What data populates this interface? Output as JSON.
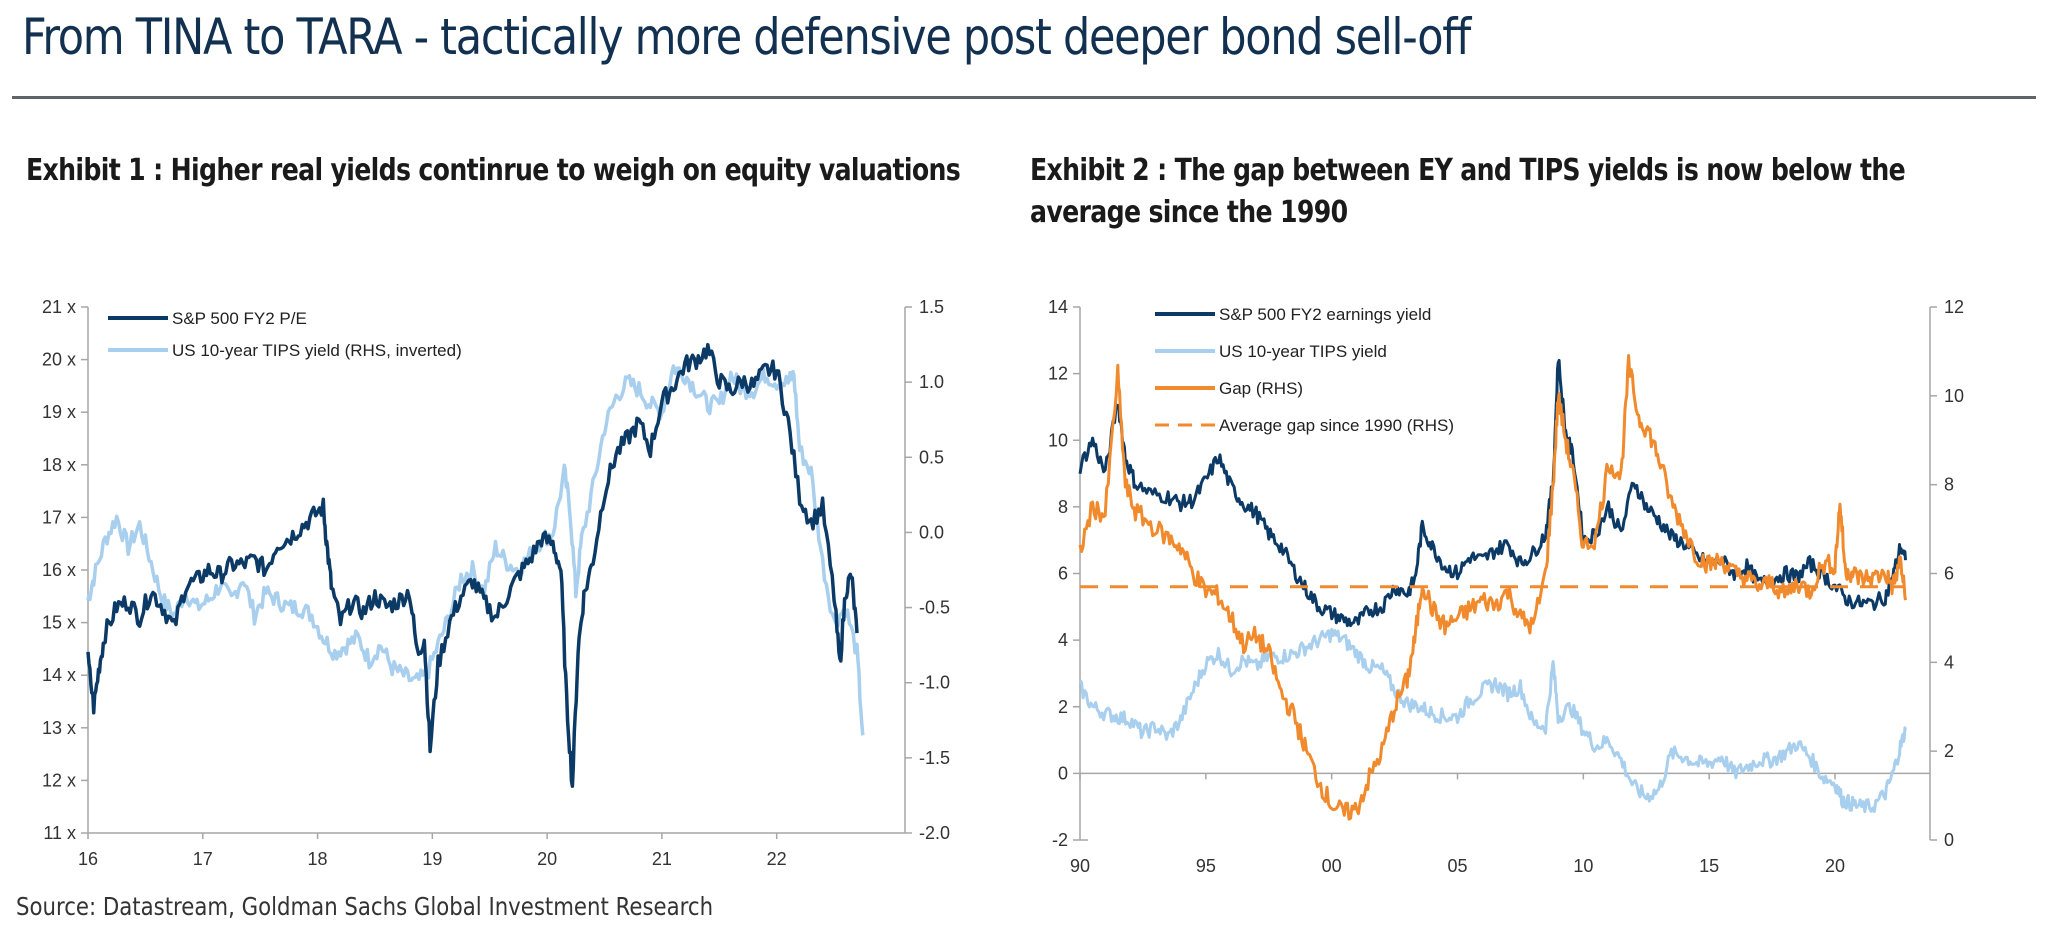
{
  "header": {
    "title": "From TINA to TARA - tactically more defensive post deeper bond sell-off"
  },
  "exhibits": [
    {
      "title": "Exhibit 1 : Higher real yields continrue to weigh on equity valuations"
    },
    {
      "title": "Exhibit 2 : The gap between EY and TIPS yields is now below the average since the 1990"
    }
  ],
  "footer": {
    "source": "Source: Datastream, Goldman Sachs Global Investment Research"
  },
  "colors": {
    "dark_blue": "#0c3a66",
    "light_blue": "#a9cfee",
    "orange": "#f08a2c",
    "axis": "#a6a6a6"
  },
  "chart_data": [
    {
      "type": "line",
      "title": "Exhibit 1 : Higher real yields continrue to weigh on equity valuations",
      "xlabel": "",
      "ylabel": "",
      "x_ticks": [
        "16",
        "17",
        "18",
        "19",
        "20",
        "21",
        "22"
      ],
      "xlim": [
        2016.0,
        2022.9
      ],
      "y_left": {
        "ticks": [
          "21 x",
          "20 x",
          "19 x",
          "18 x",
          "17 x",
          "16 x",
          "15 x",
          "14 x",
          "13 x",
          "12 x",
          "11 x"
        ],
        "range": [
          11,
          21
        ]
      },
      "y_right": {
        "ticks": [
          "1.5",
          "1.0",
          "0.5",
          "0.0",
          "-0.5",
          "-1.0",
          "-1.5",
          "-2.0"
        ],
        "range": [
          -2.0,
          1.5
        ],
        "inverted_series": true
      },
      "grid": false,
      "legend_position": "top-left",
      "series": [
        {
          "name": "S&P 500 FY2 P/E",
          "axis": "left",
          "color_key": "dark_blue",
          "x": [
            2016.0,
            2016.05,
            2016.1,
            2016.15,
            2016.25,
            2016.35,
            2016.45,
            2016.55,
            2016.65,
            2016.75,
            2016.85,
            2016.95,
            2017.05,
            2017.15,
            2017.25,
            2017.35,
            2017.45,
            2017.55,
            2017.65,
            2017.75,
            2017.85,
            2017.95,
            2018.05,
            2018.08,
            2018.12,
            2018.2,
            2018.3,
            2018.4,
            2018.5,
            2018.6,
            2018.7,
            2018.8,
            2018.87,
            2018.93,
            2018.98,
            2019.05,
            2019.15,
            2019.25,
            2019.35,
            2019.45,
            2019.55,
            2019.65,
            2019.75,
            2019.85,
            2019.95,
            2020.05,
            2020.12,
            2020.17,
            2020.22,
            2020.27,
            2020.32,
            2020.4,
            2020.5,
            2020.6,
            2020.7,
            2020.8,
            2020.9,
            2021.0,
            2021.1,
            2021.2,
            2021.3,
            2021.4,
            2021.5,
            2021.6,
            2021.7,
            2021.8,
            2021.9,
            2022.0,
            2022.1,
            2022.2,
            2022.3,
            2022.4,
            2022.5,
            2022.55,
            2022.6,
            2022.65,
            2022.7
          ],
          "values": [
            14.3,
            13.4,
            14.2,
            14.8,
            15.3,
            15.4,
            15.1,
            15.6,
            15.3,
            14.9,
            15.7,
            15.8,
            16.0,
            15.9,
            16.1,
            16.1,
            16.2,
            16.0,
            16.5,
            16.6,
            16.8,
            17.0,
            17.2,
            16.5,
            15.7,
            15.0,
            15.4,
            15.2,
            15.5,
            15.3,
            15.4,
            15.6,
            14.4,
            14.7,
            12.6,
            14.2,
            15.0,
            15.5,
            15.8,
            15.4,
            15.1,
            15.5,
            15.9,
            16.2,
            16.6,
            16.5,
            16.0,
            13.5,
            11.9,
            14.5,
            15.5,
            16.2,
            17.5,
            18.2,
            18.5,
            18.8,
            18.3,
            19.2,
            19.5,
            19.9,
            20.0,
            20.2,
            19.6,
            19.4,
            19.6,
            19.5,
            19.8,
            19.8,
            18.8,
            17.4,
            16.9,
            17.2,
            15.5,
            14.2,
            15.6,
            15.9,
            14.8
          ]
        },
        {
          "name": "US 10-year TIPS yield (RHS, inverted)",
          "axis": "right",
          "inverted": true,
          "color_key": "light_blue",
          "x": [
            2016.0,
            2016.05,
            2016.15,
            2016.25,
            2016.35,
            2016.45,
            2016.55,
            2016.65,
            2016.75,
            2016.85,
            2016.95,
            2017.05,
            2017.15,
            2017.25,
            2017.35,
            2017.45,
            2017.55,
            2017.65,
            2017.75,
            2017.85,
            2017.95,
            2018.05,
            2018.15,
            2018.25,
            2018.35,
            2018.45,
            2018.55,
            2018.65,
            2018.75,
            2018.85,
            2018.95,
            2019.05,
            2019.15,
            2019.25,
            2019.35,
            2019.45,
            2019.55,
            2019.65,
            2019.75,
            2019.85,
            2019.95,
            2020.05,
            2020.15,
            2020.2,
            2020.25,
            2020.3,
            2020.4,
            2020.5,
            2020.6,
            2020.7,
            2020.8,
            2020.9,
            2021.0,
            2021.1,
            2021.2,
            2021.3,
            2021.4,
            2021.5,
            2021.6,
            2021.7,
            2021.8,
            2021.9,
            2022.0,
            2022.1,
            2022.15,
            2022.2,
            2022.3,
            2022.4,
            2022.5,
            2022.6,
            2022.7,
            2022.75
          ],
          "values": [
            -0.45,
            -0.3,
            -0.05,
            0.1,
            -0.1,
            0.05,
            -0.2,
            -0.45,
            -0.55,
            -0.4,
            -0.5,
            -0.45,
            -0.35,
            -0.45,
            -0.3,
            -0.55,
            -0.4,
            -0.45,
            -0.5,
            -0.5,
            -0.55,
            -0.7,
            -0.8,
            -0.75,
            -0.7,
            -0.85,
            -0.75,
            -0.9,
            -0.95,
            -1.0,
            -0.95,
            -0.75,
            -0.55,
            -0.3,
            -0.25,
            -0.4,
            -0.1,
            -0.2,
            -0.25,
            -0.15,
            -0.05,
            0.0,
            0.4,
            0.15,
            -0.4,
            -0.05,
            0.3,
            0.7,
            0.9,
            1.0,
            0.95,
            0.85,
            0.8,
            1.1,
            1.05,
            0.95,
            0.85,
            0.85,
            1.05,
            0.95,
            0.95,
            1.05,
            1.0,
            1.0,
            1.05,
            0.55,
            0.4,
            -0.2,
            -0.6,
            -0.5,
            -0.8,
            -1.35
          ]
        }
      ]
    },
    {
      "type": "line",
      "title": "Exhibit 2 : The gap between EY and TIPS yields is now below the average since the 1990",
      "xlabel": "",
      "ylabel": "",
      "x_ticks": [
        "90",
        "95",
        "00",
        "05",
        "10",
        "15",
        "20"
      ],
      "xlim": [
        1990.0,
        2022.9
      ],
      "y_left": {
        "ticks": [
          "14",
          "12",
          "10",
          "8",
          "6",
          "4",
          "2",
          "0",
          "-2"
        ],
        "range": [
          -2,
          14
        ]
      },
      "y_right": {
        "ticks": [
          "12",
          "10",
          "8",
          "6",
          "4",
          "2",
          "0"
        ],
        "range": [
          0,
          12
        ]
      },
      "grid": false,
      "zero_line": true,
      "legend_position": "top-left",
      "series": [
        {
          "name": "S&P 500 FY2 earnings yield",
          "axis": "left",
          "color_key": "dark_blue",
          "x": [
            1990.0,
            1990.5,
            1991.0,
            1991.5,
            1991.8,
            1992.2,
            1992.8,
            1993.5,
            1994.0,
            1994.5,
            1995.0,
            1995.5,
            1996.0,
            1996.5,
            1997.0,
            1997.5,
            1998.0,
            1998.5,
            1999.0,
            1999.5,
            2000.0,
            2000.5,
            2001.0,
            2001.5,
            2002.0,
            2002.5,
            2003.0,
            2003.3,
            2003.6,
            2004.0,
            2004.5,
            2005.0,
            2005.5,
            2006.0,
            2006.5,
            2007.0,
            2007.5,
            2008.0,
            2008.5,
            2008.8,
            2009.0,
            2009.3,
            2009.6,
            2010.0,
            2010.5,
            2011.0,
            2011.5,
            2012.0,
            2012.5,
            2013.0,
            2013.5,
            2014.0,
            2014.5,
            2015.0,
            2015.5,
            2016.0,
            2016.5,
            2017.0,
            2017.5,
            2018.0,
            2018.5,
            2019.0,
            2019.5,
            2020.0,
            2020.5,
            2021.0,
            2021.5,
            2022.0,
            2022.3,
            2022.6,
            2022.8
          ],
          "values": [
            9.2,
            10.0,
            9.0,
            11.2,
            9.5,
            8.7,
            8.4,
            8.3,
            8.1,
            8.2,
            8.8,
            9.5,
            8.6,
            8.1,
            7.8,
            7.2,
            6.8,
            6.1,
            5.5,
            5.0,
            4.8,
            4.6,
            4.5,
            4.9,
            5.0,
            5.6,
            5.4,
            5.8,
            7.4,
            6.8,
            6.2,
            6.0,
            6.5,
            6.4,
            6.7,
            6.9,
            6.3,
            6.6,
            7.2,
            8.8,
            12.5,
            10.2,
            9.5,
            7.0,
            7.2,
            8.0,
            7.2,
            8.8,
            8.0,
            7.6,
            7.1,
            6.9,
            6.5,
            6.3,
            6.4,
            6.0,
            6.2,
            5.7,
            5.8,
            6.0,
            5.9,
            6.3,
            6.0,
            5.6,
            5.2,
            5.1,
            5.1,
            5.3,
            5.9,
            6.8,
            6.4
          ]
        },
        {
          "name": "US 10-year TIPS yield",
          "axis": "left",
          "color_key": "light_blue",
          "x": [
            1990.0,
            1990.5,
            1991.0,
            1991.5,
            1992.0,
            1992.5,
            1993.0,
            1993.5,
            1994.0,
            1994.5,
            1995.0,
            1995.5,
            1996.0,
            1996.5,
            1997.0,
            1997.5,
            1998.0,
            1998.5,
            1999.0,
            1999.5,
            2000.0,
            2000.5,
            2001.0,
            2001.5,
            2002.0,
            2002.5,
            2003.0,
            2003.5,
            2004.0,
            2004.5,
            2005.0,
            2005.5,
            2006.0,
            2006.5,
            2007.0,
            2007.5,
            2008.0,
            2008.5,
            2008.8,
            2009.0,
            2009.5,
            2010.0,
            2010.5,
            2011.0,
            2011.5,
            2012.0,
            2012.5,
            2013.0,
            2013.5,
            2014.0,
            2014.5,
            2015.0,
            2015.5,
            2016.0,
            2016.5,
            2017.0,
            2017.5,
            2018.0,
            2018.5,
            2019.0,
            2019.5,
            2020.0,
            2020.3,
            2020.6,
            2021.0,
            2021.5,
            2022.0,
            2022.3,
            2022.6,
            2022.8
          ],
          "values": [
            2.6,
            2.0,
            1.8,
            1.7,
            1.6,
            1.2,
            1.4,
            1.1,
            1.6,
            2.5,
            3.3,
            3.6,
            3.1,
            3.4,
            3.2,
            3.5,
            3.5,
            3.6,
            3.8,
            4.0,
            4.2,
            4.0,
            3.6,
            3.2,
            3.1,
            2.5,
            2.1,
            2.0,
            1.8,
            1.7,
            1.7,
            2.2,
            2.5,
            2.7,
            2.4,
            2.6,
            1.5,
            1.4,
            3.3,
            1.7,
            2.0,
            1.3,
            0.8,
            1.0,
            0.4,
            -0.4,
            -0.7,
            -0.5,
            0.6,
            0.5,
            0.3,
            0.3,
            0.5,
            0.0,
            0.2,
            0.4,
            0.4,
            0.6,
            0.9,
            0.5,
            -0.1,
            -0.3,
            -0.8,
            -0.9,
            -1.0,
            -1.0,
            -0.6,
            0.0,
            0.8,
            1.3
          ]
        },
        {
          "name": "Gap (RHS)",
          "axis": "right",
          "color_key": "orange",
          "x": [
            1990.0,
            1990.5,
            1991.0,
            1991.5,
            1991.8,
            1992.2,
            1992.8,
            1993.5,
            1994.0,
            1994.5,
            1995.0,
            1995.5,
            1996.0,
            1996.5,
            1997.0,
            1997.5,
            1998.0,
            1998.5,
            1999.0,
            1999.5,
            2000.0,
            2000.5,
            2001.0,
            2001.5,
            2002.0,
            2002.5,
            2003.0,
            2003.3,
            2003.6,
            2004.0,
            2004.5,
            2005.0,
            2005.5,
            2006.0,
            2006.5,
            2007.0,
            2007.5,
            2008.0,
            2008.5,
            2008.8,
            2009.0,
            2009.3,
            2009.6,
            2010.0,
            2010.5,
            2011.0,
            2011.5,
            2011.8,
            2012.2,
            2012.6,
            2013.0,
            2013.5,
            2014.0,
            2014.5,
            2015.0,
            2015.5,
            2016.0,
            2016.5,
            2017.0,
            2017.5,
            2018.0,
            2018.5,
            2019.0,
            2019.5,
            2020.0,
            2020.2,
            2020.4,
            2020.7,
            2021.0,
            2021.5,
            2022.0,
            2022.3,
            2022.6,
            2022.8
          ],
          "values": [
            6.5,
            7.5,
            7.3,
            10.5,
            8.0,
            7.4,
            7.1,
            6.8,
            6.6,
            6.0,
            5.6,
            5.5,
            5.0,
            4.4,
            4.6,
            4.2,
            3.3,
            2.8,
            2.0,
            1.3,
            0.8,
            0.6,
            0.7,
            1.4,
            2.0,
            3.0,
            3.6,
            4.5,
            5.8,
            5.2,
            4.8,
            5.0,
            5.2,
            5.4,
            5.3,
            5.6,
            5.0,
            4.8,
            6.0,
            8.0,
            10.0,
            9.0,
            8.2,
            6.6,
            6.8,
            8.5,
            8.2,
            10.7,
            9.5,
            9.2,
            8.6,
            7.6,
            7.0,
            6.4,
            6.2,
            6.3,
            6.0,
            5.9,
            5.7,
            5.8,
            5.5,
            5.8,
            5.6,
            6.2,
            6.2,
            7.6,
            6.1,
            6.0,
            5.9,
            5.9,
            6.0,
            5.7,
            6.3,
            5.4
          ]
        },
        {
          "name": "Average gap since 1990 (RHS)",
          "axis": "right",
          "color_key": "orange",
          "dashed": true,
          "x": [
            1990.0,
            2022.8
          ],
          "values": [
            5.7,
            5.7
          ]
        }
      ]
    }
  ]
}
